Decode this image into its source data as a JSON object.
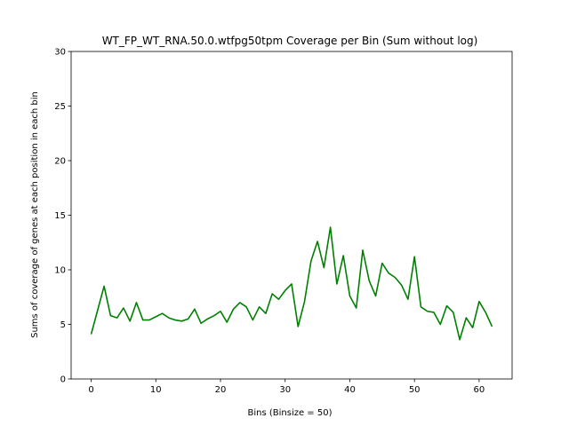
{
  "chart_data": {
    "type": "line",
    "title": "WT_FP_WT_RNA.50.0.wtfpg50tpm Coverage per Bin (Sum without log)",
    "xlabel": "Bins (Binsize = 50)",
    "ylabel": "Sums of coverage of genes at each position in each bin",
    "xlim": [
      -3.1,
      65.1
    ],
    "ylim": [
      0,
      30
    ],
    "xticks": [
      0,
      10,
      20,
      30,
      40,
      50,
      60
    ],
    "yticks": [
      0,
      5,
      10,
      15,
      20,
      25,
      30
    ],
    "grid": false,
    "legend": "none",
    "series": [
      {
        "color": "#008000",
        "x": [
          0,
          1,
          2,
          3,
          4,
          5,
          6,
          7,
          8,
          9,
          10,
          11,
          12,
          13,
          14,
          15,
          16,
          17,
          18,
          19,
          20,
          21,
          22,
          23,
          24,
          25,
          26,
          27,
          28,
          29,
          30,
          31,
          32,
          33,
          34,
          35,
          36,
          37,
          38,
          39,
          40,
          41,
          42,
          43,
          44,
          45,
          46,
          47,
          48,
          49,
          50,
          51,
          52,
          53,
          54,
          55,
          56,
          57,
          58,
          59,
          60,
          61,
          62
        ],
        "values": [
          4.1,
          6.3,
          8.5,
          5.8,
          5.6,
          6.5,
          5.3,
          7.0,
          5.4,
          5.4,
          5.7,
          6.0,
          5.6,
          5.4,
          5.3,
          5.5,
          6.4,
          5.1,
          5.5,
          5.8,
          6.2,
          5.2,
          6.4,
          7.0,
          6.6,
          5.4,
          6.6,
          6.0,
          7.8,
          7.3,
          8.1,
          8.7,
          4.8,
          7.1,
          10.8,
          12.6,
          10.2,
          13.9,
          8.7,
          11.3,
          7.6,
          6.5,
          11.8,
          9.0,
          7.6,
          10.6,
          9.7,
          9.3,
          8.6,
          7.3,
          11.2,
          6.6,
          6.2,
          6.1,
          5.0,
          6.7,
          6.1,
          3.6,
          5.6,
          4.7,
          7.1,
          6.1,
          4.8
        ]
      }
    ]
  }
}
